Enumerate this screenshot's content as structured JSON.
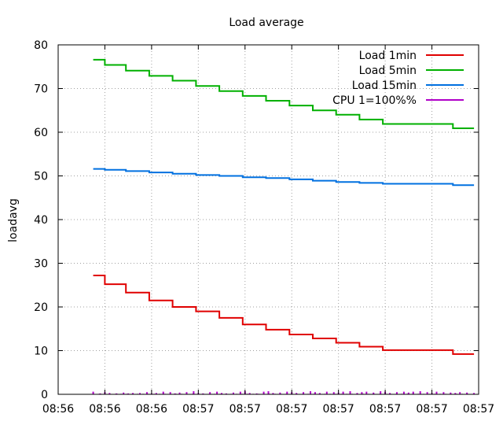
{
  "chart_data": {
    "type": "line",
    "title": "Load average",
    "xlabel": "",
    "ylabel": "loadavg",
    "ylim": [
      0,
      80
    ],
    "xlim": [
      0,
      9
    ],
    "grid": true,
    "legend_position": "top-right",
    "xticks": [
      {
        "x": 0,
        "label": "08:56"
      },
      {
        "x": 1,
        "label": "08:56"
      },
      {
        "x": 2,
        "label": "08:56"
      },
      {
        "x": 3,
        "label": "08:57"
      },
      {
        "x": 4,
        "label": "08:57"
      },
      {
        "x": 5,
        "label": "08:57"
      },
      {
        "x": 6,
        "label": "08:57"
      },
      {
        "x": 7,
        "label": "08:57"
      },
      {
        "x": 8,
        "label": "08:57"
      },
      {
        "x": 9,
        "label": "08:57"
      }
    ],
    "yticks": [
      0,
      10,
      20,
      30,
      40,
      50,
      60,
      70,
      80
    ],
    "series": [
      {
        "name": "Load 1min",
        "color": "#e00000",
        "x": [
          0.75,
          1.0,
          1.0,
          1.45,
          1.45,
          1.95,
          1.95,
          2.45,
          2.45,
          2.95,
          2.95,
          3.45,
          3.45,
          3.95,
          3.95,
          4.45,
          4.45,
          4.95,
          4.95,
          5.45,
          5.45,
          5.95,
          5.95,
          6.45,
          6.45,
          6.95,
          6.95,
          7.45,
          7.45,
          7.95,
          7.95,
          8.45,
          8.45,
          8.9
        ],
        "y": [
          27.2,
          27.2,
          25.2,
          25.2,
          23.3,
          23.3,
          21.5,
          21.5,
          20.0,
          20.0,
          19.0,
          19.0,
          17.5,
          17.5,
          16.0,
          16.0,
          14.8,
          14.8,
          13.7,
          13.7,
          12.8,
          12.8,
          11.8,
          11.8,
          10.9,
          10.9,
          10.1,
          10.1,
          10.1,
          10.1,
          10.1,
          10.1,
          9.2,
          9.2
        ]
      },
      {
        "name": "Load 5min",
        "color": "#00b000",
        "x": [
          0.75,
          1.0,
          1.0,
          1.45,
          1.45,
          1.95,
          1.95,
          2.45,
          2.45,
          2.95,
          2.95,
          3.45,
          3.45,
          3.95,
          3.95,
          4.45,
          4.45,
          4.95,
          4.95,
          5.45,
          5.45,
          5.95,
          5.95,
          6.45,
          6.45,
          6.95,
          6.95,
          7.45,
          7.45,
          7.95,
          7.95,
          8.45,
          8.45,
          8.9
        ],
        "y": [
          76.6,
          76.6,
          75.4,
          75.4,
          74.1,
          74.1,
          72.9,
          72.9,
          71.8,
          71.8,
          70.6,
          70.6,
          69.4,
          69.4,
          68.3,
          68.3,
          67.2,
          67.2,
          66.1,
          66.1,
          65.0,
          65.0,
          64.0,
          64.0,
          62.9,
          62.9,
          61.9,
          61.9,
          61.9,
          61.9,
          61.9,
          61.9,
          60.9,
          60.9
        ]
      },
      {
        "name": "Load 15min",
        "color": "#0070e0",
        "x": [
          0.75,
          1.0,
          1.0,
          1.45,
          1.45,
          1.95,
          1.95,
          2.45,
          2.45,
          2.95,
          2.95,
          3.45,
          3.45,
          3.95,
          3.95,
          4.45,
          4.45,
          4.95,
          4.95,
          5.45,
          5.45,
          5.95,
          5.95,
          6.45,
          6.45,
          6.95,
          6.95,
          7.45,
          7.45,
          7.95,
          7.95,
          8.45,
          8.45,
          8.9
        ],
        "y": [
          51.6,
          51.6,
          51.4,
          51.4,
          51.1,
          51.1,
          50.8,
          50.8,
          50.5,
          50.5,
          50.2,
          50.2,
          50.0,
          50.0,
          49.7,
          49.7,
          49.5,
          49.5,
          49.2,
          49.2,
          48.9,
          48.9,
          48.6,
          48.6,
          48.4,
          48.4,
          48.2,
          48.2,
          48.2,
          48.2,
          48.2,
          48.2,
          47.9,
          47.9
        ]
      },
      {
        "name": "CPU 1=100%%",
        "color": "#b000c8",
        "x": [
          0.75,
          0.9,
          1.0,
          1.1,
          1.25,
          1.4,
          1.5,
          1.6,
          1.75,
          1.9,
          2.0,
          2.1,
          2.25,
          2.4,
          2.5,
          2.6,
          2.75,
          2.9,
          3.0,
          3.1,
          3.25,
          3.4,
          3.5,
          3.6,
          3.75,
          3.9,
          4.0,
          4.1,
          4.25,
          4.4,
          4.5,
          4.6,
          4.75,
          4.9,
          5.0,
          5.1,
          5.25,
          5.4,
          5.5,
          5.6,
          5.75,
          5.9,
          6.0,
          6.1,
          6.25,
          6.4,
          6.5,
          6.6,
          6.75,
          6.9,
          7.0,
          7.1,
          7.25,
          7.4,
          7.5,
          7.6,
          7.75,
          7.9,
          8.0,
          8.1,
          8.25,
          8.4,
          8.5,
          8.6,
          8.75,
          8.9
        ],
        "y": [
          0.6,
          0.2,
          0.5,
          0.3,
          0.2,
          0.4,
          0.2,
          0.3,
          0.3,
          0.5,
          0.2,
          0.3,
          0.6,
          0.5,
          0.2,
          0.4,
          0.5,
          0.7,
          0.3,
          0.2,
          0.5,
          0.6,
          0.3,
          0.2,
          0.4,
          0.6,
          0.7,
          0.3,
          0.2,
          0.6,
          0.7,
          0.3,
          0.4,
          0.6,
          0.5,
          0.3,
          0.5,
          0.7,
          0.5,
          0.3,
          0.6,
          0.5,
          0.4,
          0.6,
          0.7,
          0.3,
          0.5,
          0.6,
          0.4,
          0.7,
          0.6,
          0.3,
          0.5,
          0.6,
          0.4,
          0.6,
          0.7,
          0.5,
          0.3,
          0.6,
          0.5,
          0.4,
          0.3,
          0.5,
          0.4,
          0.3
        ]
      }
    ]
  }
}
